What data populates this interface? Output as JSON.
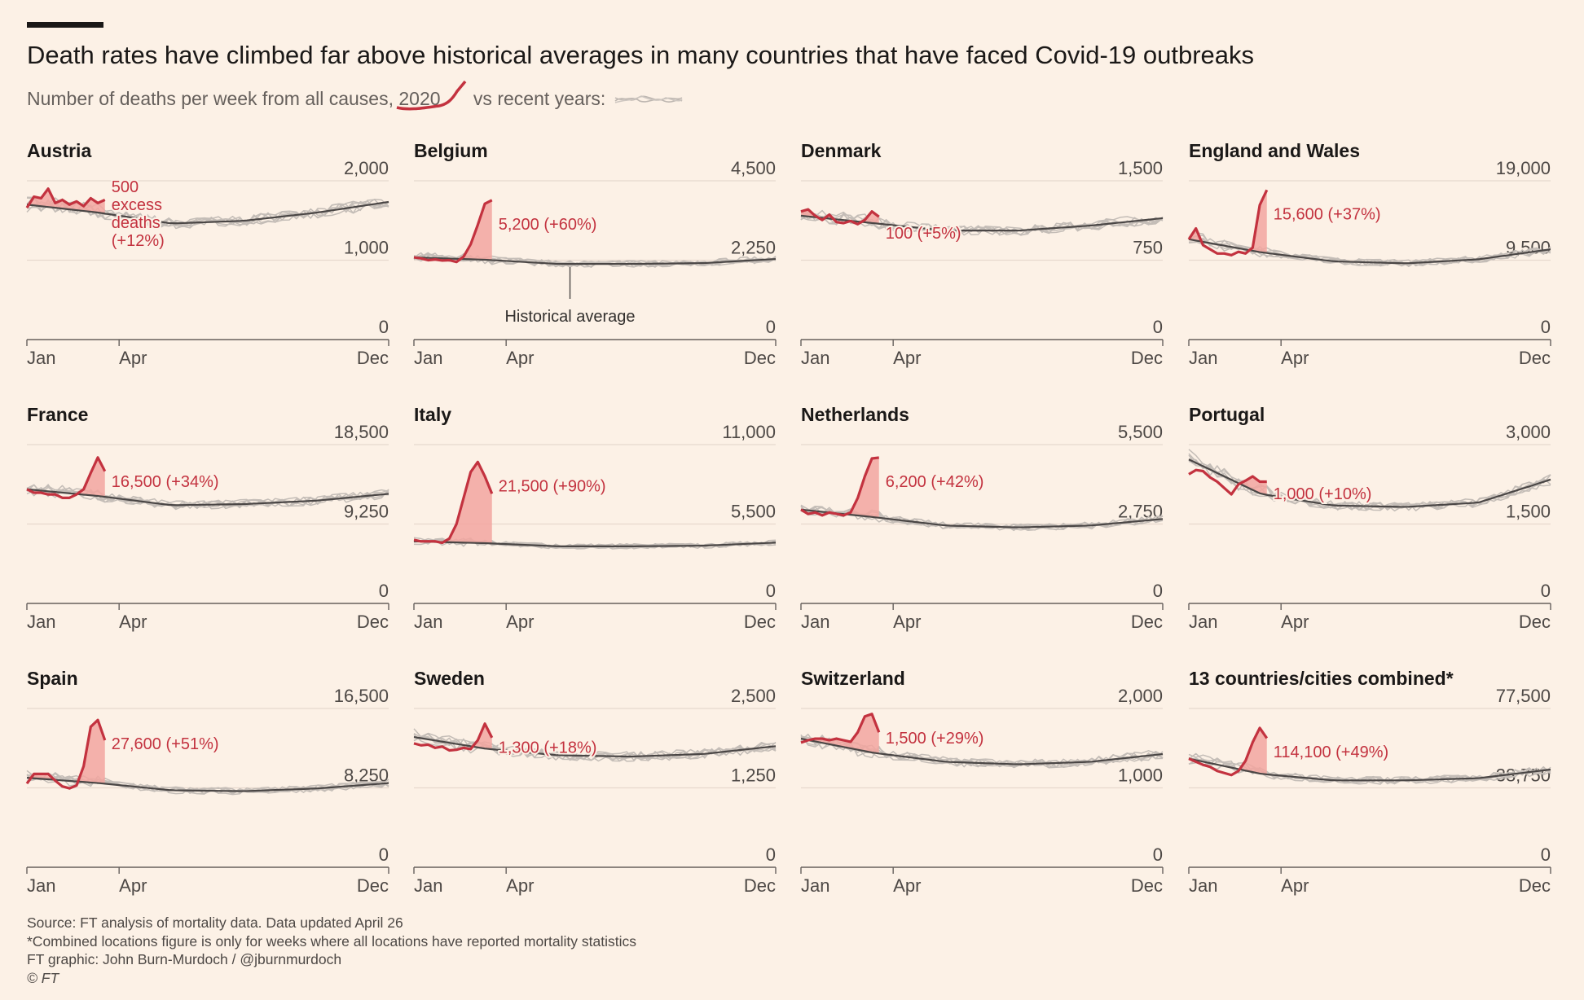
{
  "title": "Death rates have climbed far above historical averages in many countries that have faced Covid-19 outbreaks",
  "subtitle": {
    "prefix": "Number of deaths per week from all causes, ",
    "year": "2020",
    "middle": " vs recent years:"
  },
  "colors": {
    "background": "#fcf1e6",
    "line_2020": "#c3323f",
    "excess_fill": "#f2a6a0",
    "historical_average": "#4a4645",
    "recent_years": "#c4bdb7",
    "axis": "#66605c",
    "grid": "#e6d9ce"
  },
  "footer": {
    "source": "Source: FT analysis of mortality data. Data updated April 26",
    "note": "*Combined locations figure is only for weeks where all locations have reported mortality statistics",
    "credit": "FT graphic: John Burn-Murdoch / @jburnmurdoch",
    "copyright": "© FT"
  },
  "chart_data": [
    {
      "type": "line",
      "title": "Austria",
      "x_ticks": [
        "Jan",
        "Apr",
        "Dec"
      ],
      "y_ticks": [
        "0",
        "1,000",
        "2,000"
      ],
      "ylim": [
        0,
        2000
      ],
      "base": 1700,
      "trend": [
        0,
        -0.06,
        -0.14,
        -0.12,
        -0.06,
        0.02
      ],
      "series_2020": [
        1660,
        1800,
        1780,
        1900,
        1720,
        1760,
        1700,
        1740,
        1680,
        1780,
        1720,
        1760
      ],
      "annotation": {
        "lines": [
          "500",
          "excess",
          "deaths",
          "(+12%)"
        ],
        "position": "left"
      }
    },
    {
      "type": "line",
      "title": "Belgium",
      "x_ticks": [
        "Jan",
        "Apr",
        "Dec"
      ],
      "y_ticks": [
        "0",
        "2,250",
        "4,500"
      ],
      "ylim": [
        0,
        4500
      ],
      "base": 2330,
      "trend": [
        0,
        -0.03,
        -0.08,
        -0.08,
        -0.07,
        -0.02
      ],
      "series_2020": [
        2330,
        2300,
        2250,
        2270,
        2240,
        2250,
        2200,
        2350,
        2700,
        3250,
        3850,
        3950
      ],
      "annotation": {
        "lines": [
          "5,200 (+60%)"
        ],
        "position": "right"
      },
      "callout": "Historical average"
    },
    {
      "type": "line",
      "title": "Denmark",
      "x_ticks": [
        "Jan",
        "Apr",
        "Dec"
      ],
      "y_ticks": [
        "0",
        "750",
        "1,500"
      ],
      "ylim": [
        0,
        1500
      ],
      "base": 1170,
      "trend": [
        0,
        -0.06,
        -0.12,
        -0.12,
        -0.08,
        -0.02
      ],
      "series_2020": [
        1210,
        1230,
        1170,
        1130,
        1180,
        1110,
        1100,
        1120,
        1090,
        1130,
        1210,
        1160
      ],
      "annotation": {
        "lines": [
          "100 (+5%)"
        ],
        "position": "right"
      }
    },
    {
      "type": "line",
      "title": "England and Wales",
      "x_ticks": [
        "Jan",
        "Apr",
        "Dec"
      ],
      "y_ticks": [
        "0",
        "9,500",
        "19,000"
      ],
      "ylim": [
        0,
        19000
      ],
      "base": 12000,
      "trend": [
        0,
        -0.13,
        -0.22,
        -0.24,
        -0.2,
        -0.1
      ],
      "series_2020": [
        12000,
        13300,
        11300,
        10800,
        10300,
        10300,
        10100,
        10500,
        10300,
        11000,
        16100,
        17900
      ],
      "annotation": {
        "lines": [
          "15,600 (+37%)"
        ],
        "position": "right"
      }
    },
    {
      "type": "line",
      "title": "France",
      "x_ticks": [
        "Jan",
        "Apr",
        "Dec"
      ],
      "y_ticks": [
        "0",
        "9,250",
        "18,500"
      ],
      "ylim": [
        0,
        18500
      ],
      "base": 13300,
      "trend": [
        0,
        -0.06,
        -0.14,
        -0.13,
        -0.1,
        -0.04
      ],
      "series_2020": [
        13300,
        12900,
        12900,
        12700,
        12700,
        12300,
        12300,
        12700,
        13300,
        15200,
        17000,
        15400
      ],
      "annotation": {
        "lines": [
          "16,500 (+34%)"
        ],
        "position": "right"
      }
    },
    {
      "type": "line",
      "title": "Italy",
      "x_ticks": [
        "Jan",
        "Apr",
        "Dec"
      ],
      "y_ticks": [
        "0",
        "5,500",
        "11,000"
      ],
      "ylim": [
        0,
        11000
      ],
      "base": 4300,
      "trend": [
        0,
        -0.03,
        -0.08,
        -0.08,
        -0.07,
        -0.02
      ],
      "series_2020": [
        4400,
        4300,
        4300,
        4300,
        4200,
        4500,
        5500,
        7300,
        9100,
        9800,
        8800,
        7600
      ],
      "annotation": {
        "lines": [
          "21,500 (+90%)"
        ],
        "position": "right"
      }
    },
    {
      "type": "line",
      "title": "Netherlands",
      "x_ticks": [
        "Jan",
        "Apr",
        "Dec"
      ],
      "y_ticks": [
        "0",
        "2,750",
        "5,500"
      ],
      "ylim": [
        0,
        5500
      ],
      "base": 3250,
      "trend": [
        0,
        -0.08,
        -0.17,
        -0.19,
        -0.17,
        -0.1
      ],
      "series_2020": [
        3250,
        3100,
        3150,
        3050,
        3150,
        3100,
        3050,
        3150,
        3650,
        4400,
        5020,
        5050
      ],
      "annotation": {
        "lines": [
          "6,200 (+42%)"
        ],
        "position": "right"
      }
    },
    {
      "type": "line",
      "title": "Portugal",
      "x_ticks": [
        "Jan",
        "Apr",
        "Dec"
      ],
      "y_ticks": [
        "0",
        "1,500",
        "3,000"
      ],
      "ylim": [
        0,
        3000
      ],
      "base": 2720,
      "trend": [
        0,
        -0.24,
        -0.32,
        -0.33,
        -0.3,
        -0.14
      ],
      "series_2020": [
        2440,
        2520,
        2500,
        2380,
        2300,
        2180,
        2060,
        2250,
        2320,
        2400,
        2300,
        2300
      ],
      "annotation": {
        "lines": [
          "1,000 (+10%)"
        ],
        "position": "right"
      }
    },
    {
      "type": "line",
      "title": "Spain",
      "x_ticks": [
        "Jan",
        "Apr",
        "Dec"
      ],
      "y_ticks": [
        "0",
        "8,250",
        "16,500"
      ],
      "ylim": [
        0,
        16500
      ],
      "base": 9300,
      "trend": [
        0,
        -0.06,
        -0.14,
        -0.15,
        -0.12,
        -0.06
      ],
      "series_2020": [
        8700,
        9700,
        9700,
        9700,
        9000,
        8400,
        8200,
        8500,
        10500,
        14600,
        15300,
        13200
      ],
      "annotation": {
        "lines": [
          "27,600 (+51%)"
        ],
        "position": "right"
      }
    },
    {
      "type": "line",
      "title": "Sweden",
      "x_ticks": [
        "Jan",
        "Apr",
        "Dec"
      ],
      "y_ticks": [
        "0",
        "1,250",
        "2,500"
      ],
      "ylim": [
        0,
        2500
      ],
      "base": 2050,
      "trend": [
        0,
        -0.09,
        -0.14,
        -0.15,
        -0.13,
        -0.07
      ],
      "series_2020": [
        1950,
        1920,
        1930,
        1880,
        1900,
        1840,
        1850,
        1880,
        1860,
        2000,
        2260,
        2040
      ],
      "annotation": {
        "lines": [
          "1,300 (+18%)"
        ],
        "position": "right"
      }
    },
    {
      "type": "line",
      "title": "Switzerland",
      "x_ticks": [
        "Jan",
        "Apr",
        "Dec"
      ],
      "y_ticks": [
        "0",
        "1,000",
        "2,000"
      ],
      "ylim": [
        0,
        2000
      ],
      "base": 1620,
      "trend": [
        0,
        -0.11,
        -0.18,
        -0.2,
        -0.18,
        -0.12
      ],
      "series_2020": [
        1570,
        1600,
        1620,
        1620,
        1600,
        1620,
        1600,
        1580,
        1700,
        1900,
        1930,
        1700
      ],
      "annotation": {
        "lines": [
          "1,500 (+29%)"
        ],
        "position": "right"
      }
    },
    {
      "type": "line",
      "title": "13 countries/cities combined*",
      "x_ticks": [
        "Jan",
        "Apr",
        "Dec"
      ],
      "y_ticks": [
        "0",
        "38,750",
        "77,500"
      ],
      "ylim": [
        0,
        77500
      ],
      "base": 53000,
      "trend": [
        0,
        -0.14,
        -0.2,
        -0.2,
        -0.18,
        -0.1
      ],
      "series_2020": [
        53000,
        51500,
        50000,
        49000,
        47000,
        46000,
        45000,
        47000,
        52000,
        61000,
        68000,
        63000
      ],
      "annotation": {
        "lines": [
          "114,100 (+49%)"
        ],
        "position": "right"
      }
    }
  ]
}
